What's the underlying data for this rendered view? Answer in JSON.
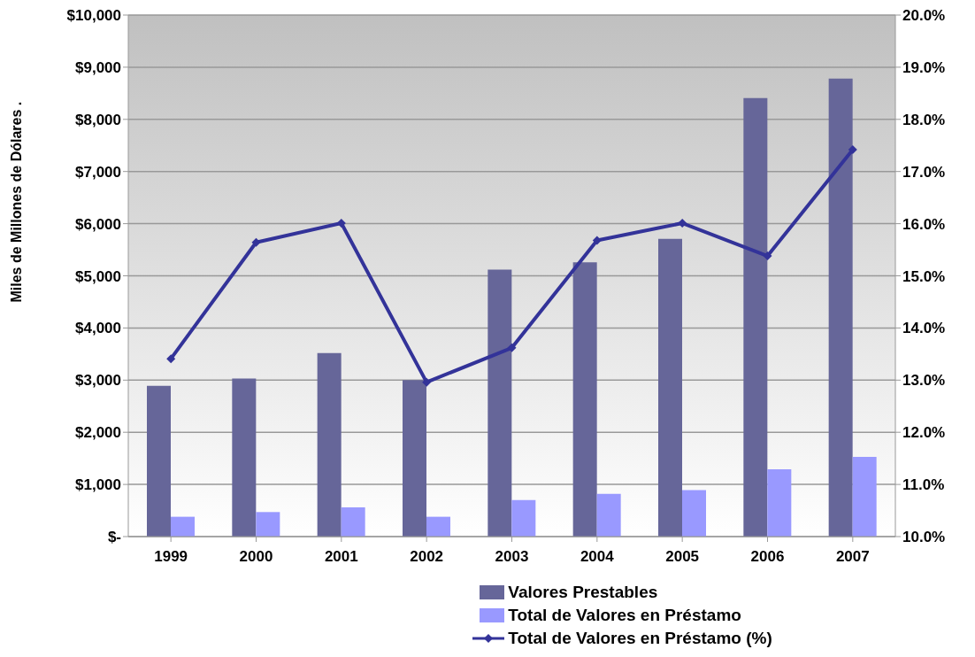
{
  "chart_data": {
    "type": "bar",
    "ylabel": "Miles de Millones de Dólares .",
    "categories": [
      "1999",
      "2000",
      "2001",
      "2002",
      "2003",
      "2004",
      "2005",
      "2006",
      "2007"
    ],
    "series": [
      {
        "name": "Valores Prestables",
        "color": "#666699",
        "values": [
          2890,
          3030,
          3520,
          3000,
          5120,
          5260,
          5710,
          8410,
          8780
        ]
      },
      {
        "name": "Total de Valores en Préstamo",
        "color": "#9999ff",
        "values": [
          380,
          470,
          560,
          380,
          700,
          820,
          890,
          1290,
          1530
        ]
      },
      {
        "name": "Total de Valores en Préstamo (%)",
        "type": "line",
        "axis": "y2",
        "color": "#333399",
        "marker": "diamond",
        "values": [
          13.41,
          15.64,
          16.01,
          12.96,
          13.62,
          15.68,
          16.01,
          15.38,
          17.42
        ]
      }
    ],
    "ylim": [
      0,
      10000
    ],
    "yticks": [
      {
        "value": 0,
        "label": "$-"
      },
      {
        "value": 1000,
        "label": "$1,000"
      },
      {
        "value": 2000,
        "label": "$2,000"
      },
      {
        "value": 3000,
        "label": "$3,000"
      },
      {
        "value": 4000,
        "label": "$4,000"
      },
      {
        "value": 5000,
        "label": "$5,000"
      },
      {
        "value": 6000,
        "label": "$6,000"
      },
      {
        "value": 7000,
        "label": "$7,000"
      },
      {
        "value": 8000,
        "label": "$8,000"
      },
      {
        "value": 9000,
        "label": "$9,000"
      },
      {
        "value": 10000,
        "label": "$10,000"
      }
    ],
    "y2lim": [
      10,
      20
    ],
    "y2ticks": [
      {
        "value": 10,
        "label": "10.0%"
      },
      {
        "value": 11,
        "label": "11.0%"
      },
      {
        "value": 12,
        "label": "12.0%"
      },
      {
        "value": 13,
        "label": "13.0%"
      },
      {
        "value": 14,
        "label": "14.0%"
      },
      {
        "value": 15,
        "label": "15.0%"
      },
      {
        "value": 16,
        "label": "16.0%"
      },
      {
        "value": 17,
        "label": "17.0%"
      },
      {
        "value": 18,
        "label": "18.0%"
      },
      {
        "value": 19,
        "label": "19.0%"
      },
      {
        "value": 20,
        "label": "20.0%"
      }
    ],
    "grid": "y",
    "legend": "bottom"
  }
}
